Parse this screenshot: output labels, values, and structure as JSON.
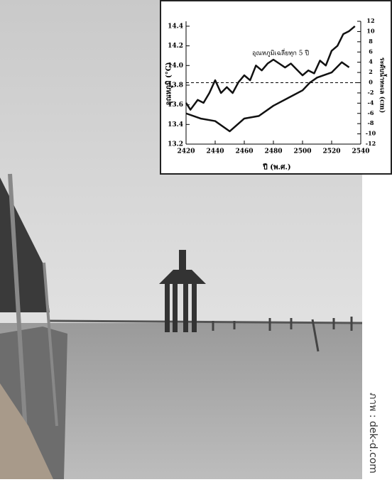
{
  "chart_data": {
    "type": "line",
    "annotation": "อุณหภูมิเฉลี่ยทุก 5 ปี",
    "xlabel": "ปี (พ.ศ.)",
    "ylabel": "อุณหภูมิ (°C)",
    "y2label": "ระดับน้ำทะเล (cm)",
    "xlim": [
      2420,
      2540
    ],
    "xticks": [
      2420,
      2440,
      2460,
      2480,
      2500,
      2520,
      2540
    ],
    "ylim": [
      13.2,
      14.45
    ],
    "yticks": [
      13.2,
      13.4,
      13.6,
      13.8,
      {
        "value": 14,
        "label": "14.0"
      },
      14.2,
      14.4
    ],
    "y2lim": [
      -12,
      12
    ],
    "y2ticks": [
      -12,
      -10,
      -8,
      -6,
      -4,
      -2,
      0,
      2,
      4,
      6,
      8,
      10,
      12
    ],
    "reference_y2": 0,
    "series": [
      {
        "color": "#111111",
        "x": [
          2420,
          2423,
          2428,
          2432,
          2436,
          2440,
          2444,
          2448,
          2452,
          2456,
          2460,
          2464,
          2468,
          2472,
          2476,
          2480,
          2484,
          2488,
          2492,
          2496,
          2500,
          2504,
          2508,
          2512,
          2516,
          2520,
          2524,
          2528,
          2532,
          2536
        ],
        "values": [
          13.62,
          13.55,
          13.65,
          13.62,
          13.72,
          13.85,
          13.72,
          13.78,
          13.72,
          13.83,
          13.9,
          13.85,
          14.0,
          13.95,
          14.02,
          14.06,
          14.02,
          13.98,
          14.02,
          13.96,
          13.9,
          13.95,
          13.92,
          14.05,
          14.0,
          14.15,
          14.2,
          14.32,
          14.35,
          14.4
        ]
      },
      {
        "color": "#111111",
        "axis": "y2",
        "x": [
          2420,
          2430,
          2440,
          2450,
          2460,
          2470,
          2480,
          2490,
          2500,
          2505,
          2510,
          2520,
          2527,
          2532
        ],
        "values": [
          -6,
          -7,
          -7.5,
          -9.5,
          -7,
          -6.5,
          -4.5,
          -3,
          -1.5,
          0,
          1,
          2,
          4,
          3
        ]
      }
    ]
  },
  "credit": "ภาพ : dek-d.com"
}
